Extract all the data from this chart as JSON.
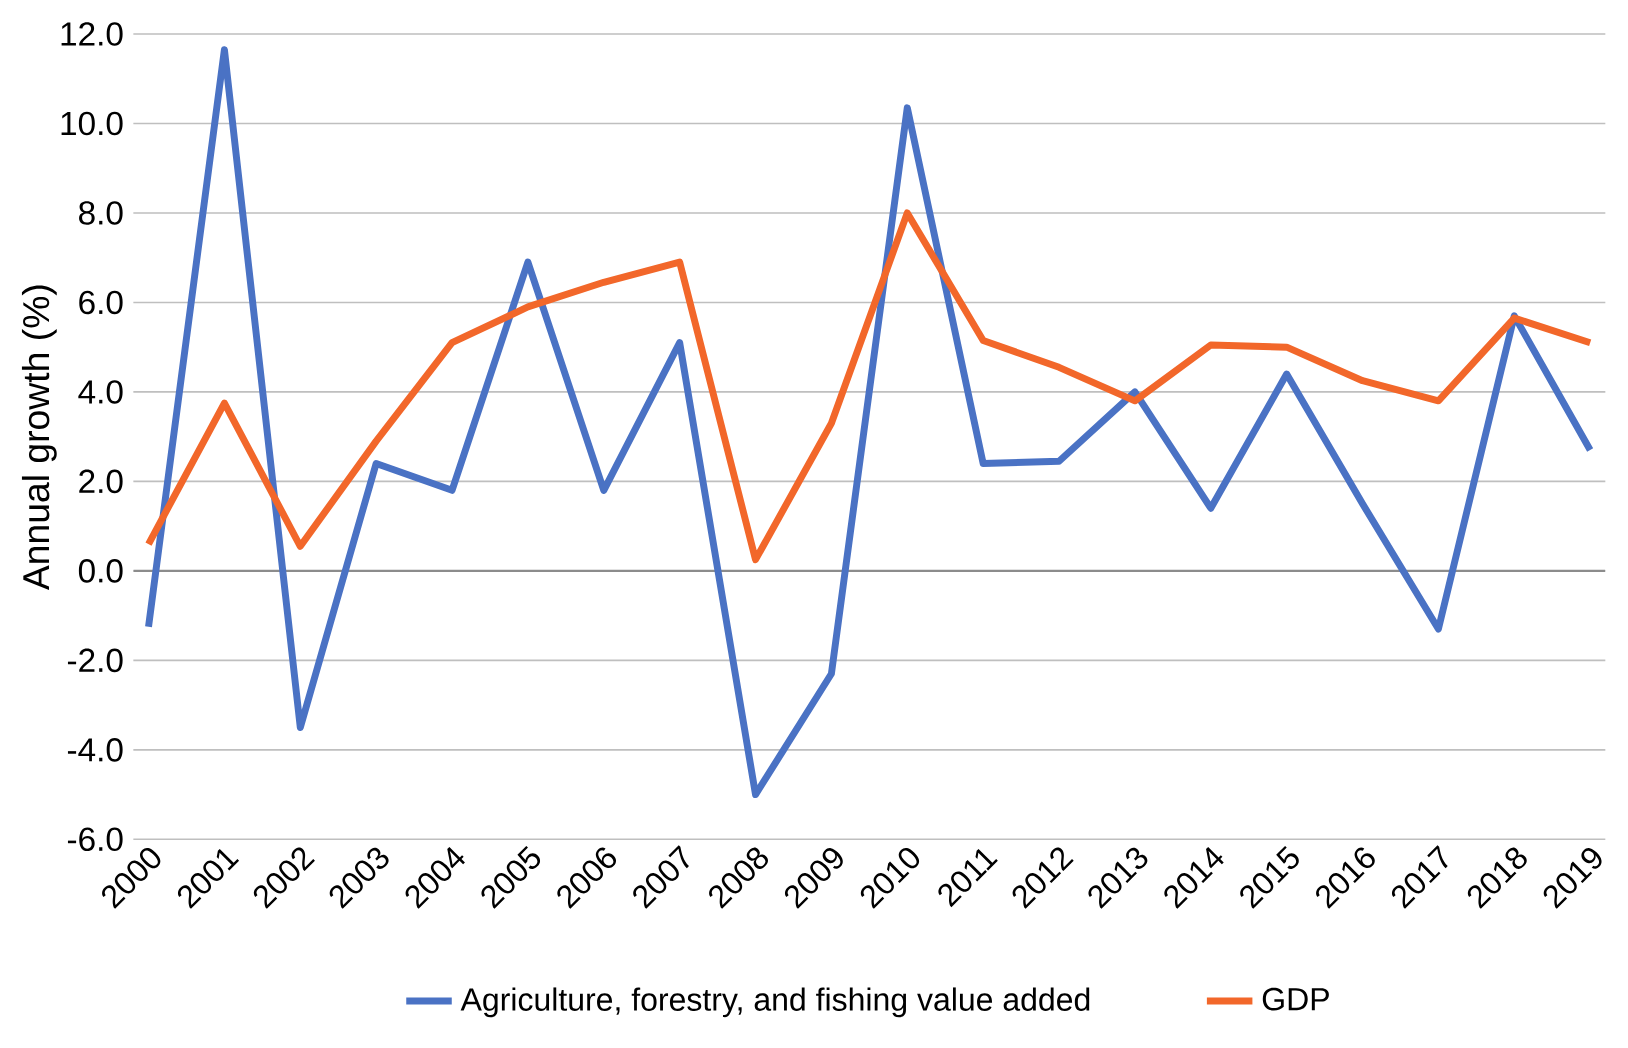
{
  "chart_data": {
    "type": "line",
    "ylabel": "Annual growth (%)",
    "categories": [
      "2000",
      "2001",
      "2002",
      "2003",
      "2004",
      "2005",
      "2006",
      "2007",
      "2008",
      "2009",
      "2010",
      "2011",
      "2012",
      "2013",
      "2014",
      "2015",
      "2016",
      "2017",
      "2018",
      "2019"
    ],
    "series": [
      {
        "name": "Agriculture, forestry, and fishing value added",
        "color": "#4a72c4",
        "values": [
          -1.25,
          11.65,
          -3.5,
          2.4,
          1.8,
          6.9,
          1.8,
          5.1,
          -5.0,
          -2.3,
          10.35,
          2.4,
          2.45,
          4.0,
          1.4,
          4.4,
          1.5,
          -1.3,
          5.7,
          2.7
        ]
      },
      {
        "name": "GDP",
        "color": "#f2672a",
        "values": [
          0.6,
          3.75,
          0.55,
          2.9,
          5.1,
          5.9,
          6.45,
          6.9,
          0.25,
          3.3,
          8.0,
          5.15,
          4.55,
          3.8,
          5.05,
          5.0,
          4.25,
          3.8,
          5.65,
          5.1
        ]
      }
    ],
    "ylim": [
      -6,
      12
    ],
    "yticks": [
      {
        "value": -6,
        "label": "-6.0"
      },
      {
        "value": -4,
        "label": "-4.0"
      },
      {
        "value": -2,
        "label": "-2.0"
      },
      {
        "value": 0,
        "label": "0.0"
      },
      {
        "value": 2,
        "label": "2.0"
      },
      {
        "value": 4,
        "label": "4.0"
      },
      {
        "value": 6,
        "label": "6.0"
      },
      {
        "value": 8,
        "label": "8.0"
      },
      {
        "value": 10,
        "label": "10.0"
      },
      {
        "value": 12,
        "label": "12.0"
      }
    ],
    "grid": "y",
    "legend": "bottom",
    "marker": "none",
    "line_style": "solid"
  }
}
